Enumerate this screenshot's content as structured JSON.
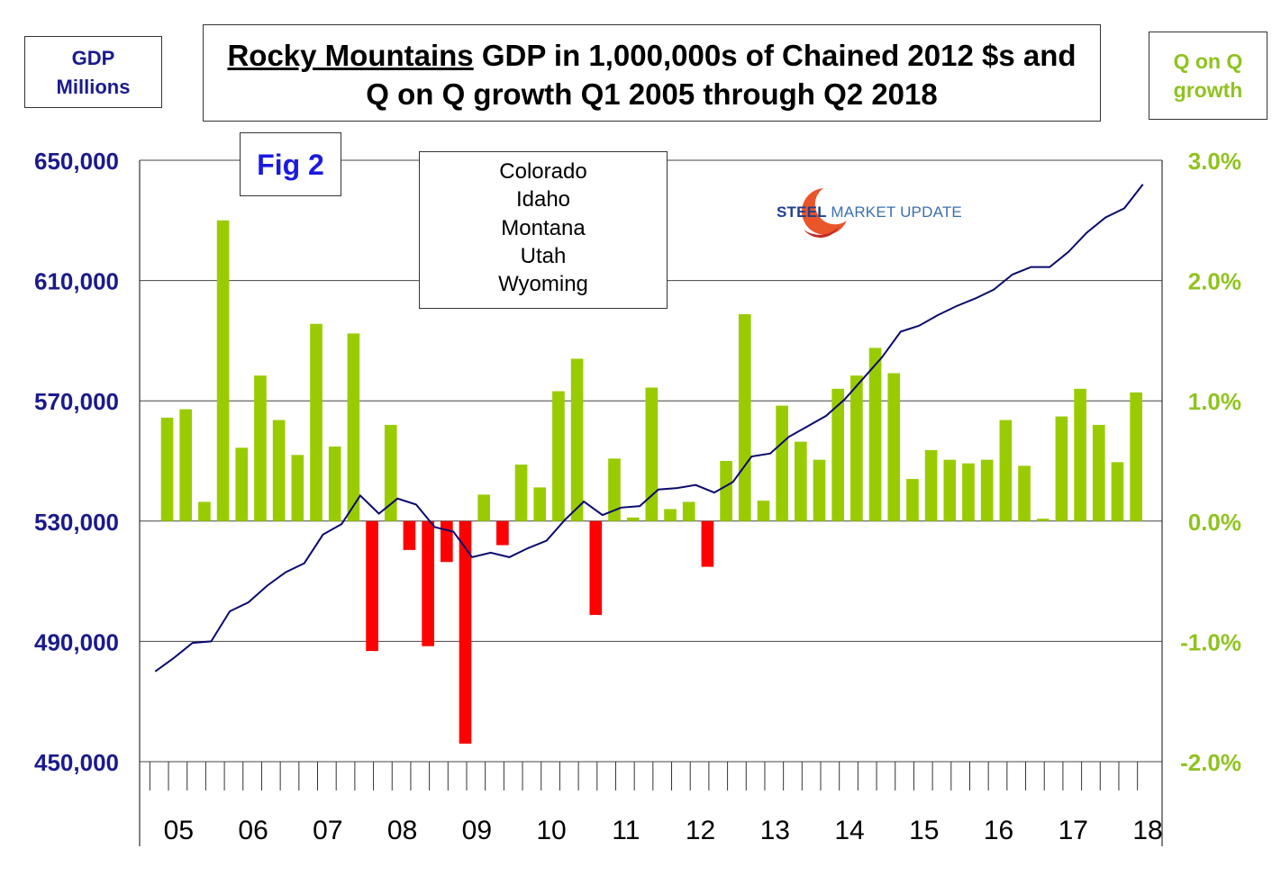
{
  "title": {
    "emphasis": "Rocky Mountains",
    "rest_line1": "GDP in 1,000,000s of Chained 2012 $s and",
    "line2": "Q on Q growth Q1 2005 through Q2 2018"
  },
  "left_axis_label": {
    "line1": "GDP",
    "line2": "Millions"
  },
  "right_axis_label": {
    "line1": "Q on Q",
    "line2": "growth"
  },
  "figure_label": "Fig 2",
  "states": [
    "Colorado",
    "Idaho",
    "Montana",
    "Utah",
    "Wyoming"
  ],
  "logo": {
    "bold_text": "STEEL",
    "light_text": "MARKET UPDATE"
  },
  "colors": {
    "left_axis": "#1a1a8c",
    "right_axis": "#8fc31f",
    "bar_positive": "#99cc00",
    "bar_negative": "#ff0000",
    "line": "#0a0a6e",
    "figure_label": "#1a1ae0"
  },
  "chart_data": {
    "type": "bar+line",
    "title": "Rocky Mountains GDP in 1,000,000s of Chained 2012 $s and Q on Q growth Q1 2005 through Q2 2018",
    "x_labels": [
      "05",
      "06",
      "07",
      "08",
      "09",
      "10",
      "11",
      "12",
      "13",
      "14",
      "15",
      "16",
      "17",
      "18"
    ],
    "quarters_count": 54,
    "left_axis": {
      "label": "GDP Millions",
      "range": [
        450000,
        650000
      ],
      "ticks": [
        650000,
        610000,
        570000,
        530000,
        490000,
        450000
      ],
      "tick_labels": [
        "650,000",
        "610,000",
        "570,000",
        "530,000",
        "490,000",
        "450,000"
      ]
    },
    "right_axis": {
      "label": "Q on Q growth",
      "range": [
        -2.0,
        3.0
      ],
      "ticks": [
        3.0,
        2.0,
        1.0,
        0.0,
        -1.0,
        -2.0
      ],
      "tick_labels": [
        "3.0%",
        "2.0%",
        "1.0%",
        "0.0%",
        "-1.0%",
        "-2.0%"
      ]
    },
    "series": [
      {
        "name": "Q on Q growth (%)",
        "type": "bar",
        "axis": "right",
        "values": [
          0.86,
          0.93,
          0.16,
          2.5,
          0.61,
          1.21,
          0.84,
          0.55,
          1.64,
          0.62,
          1.56,
          -1.08,
          0.8,
          -0.24,
          -1.04,
          -0.34,
          -1.85,
          0.22,
          -0.2,
          0.47,
          0.28,
          1.08,
          1.35,
          -0.78,
          0.52,
          0.03,
          1.11,
          0.1,
          0.16,
          -0.38,
          0.5,
          1.72,
          0.17,
          0.96,
          0.66,
          0.51,
          1.1,
          1.21,
          1.44,
          1.23,
          0.35,
          0.59,
          0.51,
          0.48,
          0.51,
          0.84,
          0.46,
          0.02,
          0.87,
          1.1,
          0.8,
          0.49,
          1.07
        ]
      },
      {
        "name": "GDP (millions of chained 2012 $)",
        "type": "line",
        "axis": "left",
        "values": [
          480000,
          484500,
          489500,
          490000,
          500000,
          503000,
          508500,
          513000,
          516000,
          525500,
          529000,
          538500,
          532500,
          537500,
          535500,
          528000,
          526500,
          518000,
          519500,
          518000,
          521000,
          523500,
          530500,
          536500,
          532000,
          534500,
          535000,
          540500,
          541000,
          542000,
          539500,
          543000,
          551500,
          552500,
          558000,
          561500,
          565000,
          570500,
          577500,
          584500,
          593000,
          595000,
          598500,
          601500,
          604000,
          607000,
          612000,
          614500,
          614500,
          619500,
          626000,
          631000,
          634000,
          642000
        ]
      }
    ]
  }
}
